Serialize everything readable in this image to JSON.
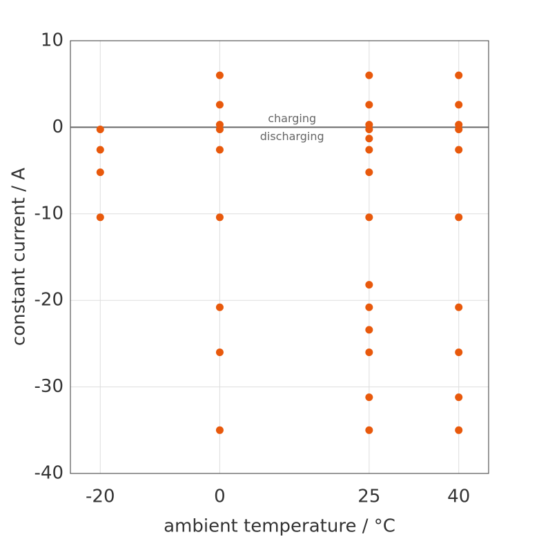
{
  "chart_data": {
    "type": "scatter",
    "xlabel": "ambient temperature / °C",
    "ylabel": "constant current / A",
    "annotations": [
      "charging",
      "discharging"
    ],
    "color": "#e8590c",
    "grid": true,
    "reference_line": 0,
    "xlim": [
      -25,
      45
    ],
    "xticks": [
      -20,
      0,
      25,
      40
    ],
    "ylim": [
      -40,
      10
    ],
    "yticks": [
      -40,
      -30,
      -20,
      -10,
      0,
      10
    ],
    "x": [
      -20,
      -20,
      -20,
      -20,
      0,
      0,
      0,
      0,
      0,
      0,
      0,
      0,
      0,
      25,
      25,
      25,
      25,
      25,
      25,
      25,
      25,
      25,
      25,
      25,
      25,
      25,
      25,
      40,
      40,
      40,
      40,
      40,
      40,
      40,
      40,
      40,
      40
    ],
    "values": [
      -0.25,
      -2.6,
      -5.2,
      -10.4,
      6,
      2.6,
      0.3,
      -0.25,
      -2.6,
      -10.4,
      -20.8,
      -26,
      -35,
      6,
      2.6,
      0.3,
      -0.25,
      -1.3,
      -2.6,
      -5.2,
      -10.4,
      -18.2,
      -20.8,
      -23.4,
      -26,
      -31.2,
      -35,
      6,
      2.6,
      0.3,
      -0.25,
      -2.6,
      -10.4,
      -20.8,
      -26,
      -31.2,
      -35
    ]
  }
}
